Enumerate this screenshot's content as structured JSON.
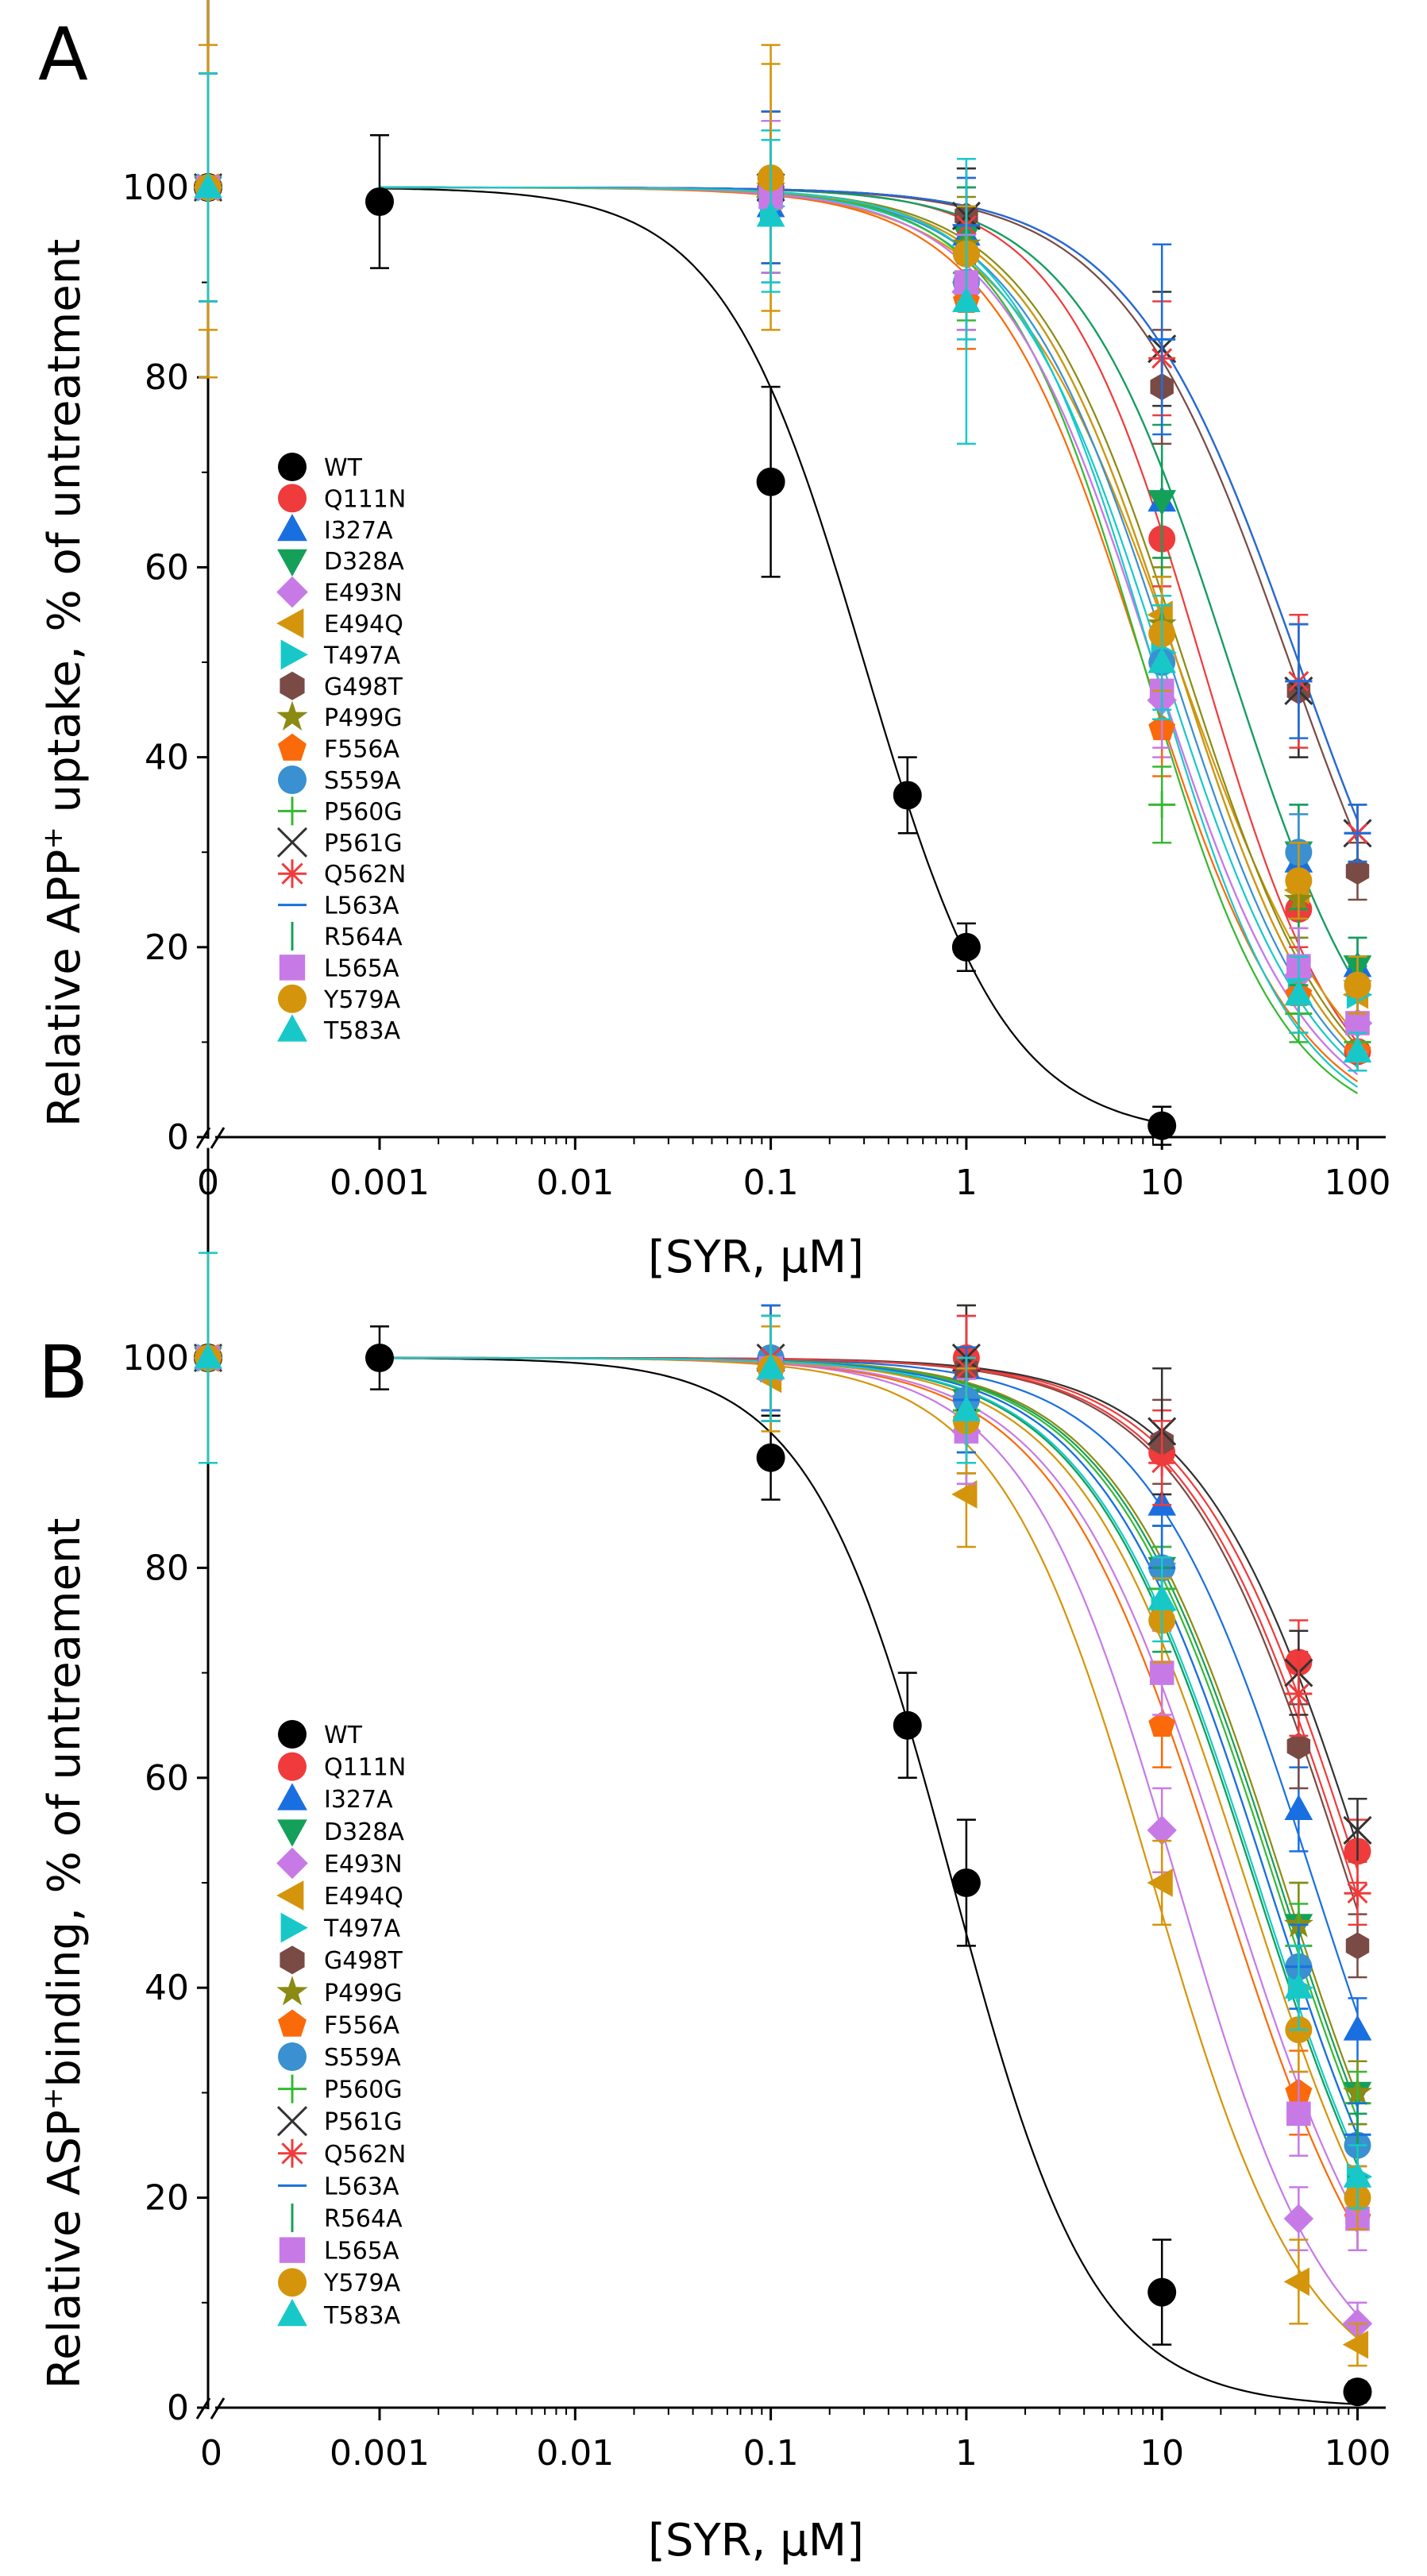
{
  "figure": {
    "panels": [
      {
        "letter": "A",
        "ylabel_pre": "Relative APP",
        "ylabel_sup": "+",
        "ylabel_post": " uptake, % of untreatment"
      },
      {
        "letter": "B",
        "ylabel_pre": "Relative ASP",
        "ylabel_sup": "+",
        "ylabel_post": "binding, % of untreament"
      }
    ]
  },
  "chart_data": [
    {
      "type": "scatter",
      "title": "A",
      "xlabel": "[SYR, μM]",
      "ylabel": "Relative APP+ uptake, % of untreatment",
      "xscale": "log with broken axis at 0",
      "x_tick_labels": [
        "0",
        "0.001",
        "0.01",
        "0.1",
        "1",
        "10",
        "100"
      ],
      "y_tick_labels": [
        "0",
        "20",
        "40",
        "60",
        "80",
        "100"
      ],
      "ylim": [
        0,
        120
      ],
      "x": [
        0,
        0.001,
        0.1,
        1,
        10,
        50,
        100
      ],
      "legend_position": "left",
      "series": [
        {
          "name": "WT",
          "color": "#000000",
          "marker": "circle",
          "values": [
            100,
            98.5,
            69,
            36,
            20,
            1.2,
            null
          ],
          "x": [
            0,
            0.001,
            0.1,
            0.5,
            1,
            10,
            null
          ],
          "errors": [
            0,
            7,
            10,
            4,
            2.5,
            2,
            null
          ],
          "ic50": 0.3,
          "hill": 1.2,
          "fit_end": 10
        },
        {
          "name": "Q111N",
          "color": "#ef3b3b",
          "marker": "circle",
          "values": [
            100,
            null,
            100,
            93,
            63,
            24,
            9
          ],
          "errors": [
            12,
            null,
            8,
            5,
            5,
            4,
            2
          ],
          "ic50": 16,
          "hill": 1.2
        },
        {
          "name": "I327A",
          "color": "#1a6fe0",
          "marker": "triangle-up",
          "values": [
            100,
            null,
            98,
            95,
            67,
            29,
            18
          ],
          "errors": [
            12,
            null,
            8,
            5,
            12,
            6,
            3
          ],
          "ic50": 22,
          "hill": 1.1
        },
        {
          "name": "D328A",
          "color": "#14a058",
          "marker": "triangle-down",
          "values": [
            100,
            null,
            99,
            95,
            67,
            30,
            18
          ],
          "errors": [
            12,
            null,
            8,
            5,
            8,
            5,
            3
          ],
          "ic50": 22,
          "hill": 1.1
        },
        {
          "name": "E493N",
          "color": "#c77ae6",
          "marker": "diamond",
          "values": [
            100,
            null,
            99,
            89,
            46,
            17,
            12
          ],
          "errors": [
            12,
            null,
            8,
            5,
            6,
            4,
            3
          ],
          "ic50": 9,
          "hill": 1.1
        },
        {
          "name": "E494Q",
          "color": "#d4950c",
          "marker": "triangle-left",
          "values": [
            100,
            null,
            99,
            90,
            55,
            26,
            15
          ],
          "errors": [
            20,
            null,
            14,
            5,
            6,
            4,
            3
          ],
          "ic50": 12,
          "hill": 1.0
        },
        {
          "name": "T497A",
          "color": "#18c8c8",
          "marker": "triangle-right",
          "values": [
            100,
            null,
            98,
            89,
            51,
            17,
            15
          ],
          "errors": [
            12,
            null,
            8,
            5,
            6,
            4,
            3
          ],
          "ic50": 10,
          "hill": 1.1
        },
        {
          "name": "G498T",
          "color": "#7a4a45",
          "marker": "hexagon",
          "values": [
            100,
            null,
            100,
            97,
            79,
            47,
            28
          ],
          "errors": [
            12,
            null,
            8,
            5,
            6,
            7,
            3
          ],
          "ic50": 45,
          "hill": 1.0
        },
        {
          "name": "P499G",
          "color": "#8b8b14",
          "marker": "star",
          "values": [
            100,
            null,
            100,
            94,
            54,
            25,
            16
          ],
          "errors": [
            12,
            null,
            8,
            5,
            6,
            4,
            3
          ],
          "ic50": 13,
          "hill": 1.1
        },
        {
          "name": "F556A",
          "color": "#fa6a0a",
          "marker": "pentagon",
          "values": [
            100,
            null,
            99,
            88,
            43,
            15,
            9
          ],
          "errors": [
            12,
            null,
            8,
            5,
            5,
            4,
            2
          ],
          "ic50": 8,
          "hill": 1.1
        },
        {
          "name": "S559A",
          "color": "#3a90d0",
          "marker": "circle",
          "values": [
            100,
            null,
            99,
            90,
            50,
            30,
            16
          ],
          "errors": [
            12,
            null,
            8,
            5,
            6,
            4,
            3
          ],
          "ic50": 11,
          "hill": 1.1
        },
        {
          "name": "P560G",
          "color": "#36b833",
          "marker": "plus",
          "values": [
            100,
            null,
            99,
            91,
            35,
            13,
            10
          ],
          "errors": [
            12,
            null,
            8,
            5,
            4,
            3,
            2
          ],
          "ic50": 8,
          "hill": 1.2
        },
        {
          "name": "P561G",
          "color": "#333333",
          "marker": "x",
          "values": [
            100,
            null,
            100,
            97,
            83,
            47,
            32
          ],
          "errors": [
            12,
            null,
            8,
            5,
            6,
            7,
            3
          ],
          "ic50": 50,
          "hill": 1.0
        },
        {
          "name": "Q562N",
          "color": "#ef3b3b",
          "marker": "asterisk",
          "values": [
            100,
            null,
            100,
            96,
            82,
            48,
            32
          ],
          "errors": [
            12,
            null,
            8,
            5,
            6,
            7,
            3
          ],
          "ic50": 50,
          "hill": 1.0
        },
        {
          "name": "L563A",
          "color": "#1a6fe0",
          "marker": "hline",
          "values": [
            100,
            null,
            100,
            96,
            84,
            48,
            32
          ],
          "errors": [
            12,
            null,
            8,
            5,
            10,
            6,
            3
          ],
          "ic50": 50,
          "hill": 1.0
        },
        {
          "name": "R564A",
          "color": "#14a058",
          "marker": "vline",
          "values": [
            100,
            null,
            99,
            93,
            55,
            20,
            15
          ],
          "errors": [
            12,
            null,
            8,
            5,
            6,
            4,
            3
          ],
          "ic50": 12,
          "hill": 1.1
        },
        {
          "name": "L565A",
          "color": "#c77ae6",
          "marker": "square",
          "values": [
            100,
            null,
            99,
            90,
            47,
            18,
            12
          ],
          "errors": [
            12,
            null,
            8,
            5,
            6,
            4,
            3
          ],
          "ic50": 9,
          "hill": 1.1
        },
        {
          "name": "Y579A",
          "color": "#d4950c",
          "marker": "circle",
          "values": [
            100,
            null,
            101,
            93,
            53,
            27,
            16
          ],
          "errors": [
            15,
            null,
            14,
            5,
            6,
            4,
            3
          ],
          "ic50": 12,
          "hill": 1.1
        },
        {
          "name": "T583A",
          "color": "#18c8c8",
          "marker": "triangle-up",
          "values": [
            100,
            null,
            97,
            88,
            50,
            15,
            9
          ],
          "errors": [
            12,
            null,
            8,
            15,
            6,
            4,
            2
          ],
          "ic50": 9,
          "hill": 1.2
        }
      ]
    },
    {
      "type": "scatter",
      "title": "B",
      "xlabel": "[SYR, μM]",
      "ylabel": "Relative ASP+binding, % of untreament",
      "xscale": "log with broken axis at 0",
      "x_tick_labels": [
        "0",
        "0.001",
        "0.01",
        "0.1",
        "1",
        "10",
        "100"
      ],
      "y_tick_labels": [
        "0",
        "20",
        "40",
        "60",
        "80",
        "100"
      ],
      "ylim": [
        0,
        110
      ],
      "x": [
        0,
        0.001,
        0.1,
        1,
        10,
        50,
        100
      ],
      "legend_position": "left",
      "series": [
        {
          "name": "WT",
          "color": "#000000",
          "marker": "circle",
          "values": [
            100,
            100,
            90.5,
            65,
            50,
            11,
            1.5
          ],
          "x": [
            0,
            0.001,
            0.1,
            0.5,
            1,
            10,
            100
          ],
          "errors": [
            0,
            3,
            4,
            5,
            6,
            5,
            1
          ],
          "ic50": 0.85,
          "hill": 1.2,
          "fit_end": 100
        },
        {
          "name": "Q111N",
          "color": "#ef3b3b",
          "marker": "circle",
          "values": [
            100,
            null,
            100,
            100,
            91,
            71,
            53
          ],
          "errors": [
            10,
            null,
            5,
            5,
            4,
            4,
            3
          ],
          "ic50": 105,
          "hill": 1.0
        },
        {
          "name": "I327A",
          "color": "#1a6fe0",
          "marker": "triangle-up",
          "values": [
            100,
            null,
            99,
            99,
            86,
            57,
            36
          ],
          "errors": [
            10,
            null,
            5,
            5,
            4,
            4,
            3
          ],
          "ic50": 60,
          "hill": 1.0
        },
        {
          "name": "D328A",
          "color": "#14a058",
          "marker": "triangle-down",
          "values": [
            100,
            null,
            99,
            96,
            80,
            46,
            30
          ],
          "errors": [
            10,
            null,
            5,
            5,
            4,
            4,
            3
          ],
          "ic50": 40,
          "hill": 1.0
        },
        {
          "name": "E493N",
          "color": "#c77ae6",
          "marker": "diamond",
          "values": [
            100,
            null,
            99,
            93,
            55,
            18,
            8
          ],
          "errors": [
            10,
            null,
            5,
            5,
            4,
            3,
            2
          ],
          "ic50": 12,
          "hill": 1.1
        },
        {
          "name": "E494Q",
          "color": "#d4950c",
          "marker": "triangle-left",
          "values": [
            100,
            null,
            98,
            87,
            50,
            12,
            6
          ],
          "errors": [
            10,
            null,
            5,
            5,
            4,
            4,
            2
          ],
          "ic50": 9,
          "hill": 1.1
        },
        {
          "name": "T497A",
          "color": "#18c8c8",
          "marker": "triangle-right",
          "values": [
            100,
            null,
            99,
            95,
            76,
            40,
            22
          ],
          "errors": [
            10,
            null,
            5,
            5,
            4,
            4,
            3
          ],
          "ic50": 30,
          "hill": 1.0
        },
        {
          "name": "G498T",
          "color": "#7a4a45",
          "marker": "hexagon",
          "values": [
            100,
            null,
            100,
            99,
            92,
            63,
            44
          ],
          "errors": [
            10,
            null,
            5,
            5,
            4,
            4,
            3
          ],
          "ic50": 90,
          "hill": 1.0
        },
        {
          "name": "P499G",
          "color": "#8b8b14",
          "marker": "star",
          "values": [
            100,
            null,
            99,
            96,
            80,
            46,
            30
          ],
          "errors": [
            10,
            null,
            5,
            5,
            4,
            4,
            3
          ],
          "ic50": 42,
          "hill": 1.0
        },
        {
          "name": "F556A",
          "color": "#fa6a0a",
          "marker": "pentagon",
          "values": [
            100,
            null,
            99,
            94,
            65,
            30,
            18
          ],
          "errors": [
            10,
            null,
            5,
            5,
            4,
            4,
            3
          ],
          "ic50": 20,
          "hill": 1.0
        },
        {
          "name": "S559A",
          "color": "#3a90d0",
          "marker": "circle",
          "values": [
            100,
            null,
            100,
            96,
            80,
            42,
            25
          ],
          "errors": [
            10,
            null,
            5,
            5,
            4,
            4,
            3
          ],
          "ic50": 35,
          "hill": 1.0
        },
        {
          "name": "P560G",
          "color": "#36b833",
          "marker": "plus",
          "values": [
            100,
            null,
            99,
            95,
            78,
            44,
            29
          ],
          "errors": [
            10,
            null,
            5,
            5,
            4,
            4,
            3
          ],
          "ic50": 38,
          "hill": 1.0
        },
        {
          "name": "P561G",
          "color": "#333333",
          "marker": "x",
          "values": [
            100,
            null,
            100,
            100,
            93,
            70,
            55
          ],
          "errors": [
            10,
            null,
            5,
            5,
            6,
            4,
            3
          ],
          "ic50": 115,
          "hill": 1.0
        },
        {
          "name": "Q562N",
          "color": "#ef3b3b",
          "marker": "asterisk",
          "values": [
            100,
            null,
            100,
            99,
            90,
            68,
            49
          ],
          "errors": [
            10,
            null,
            5,
            5,
            4,
            4,
            3
          ],
          "ic50": 95,
          "hill": 1.0
        },
        {
          "name": "L563A",
          "color": "#1a6fe0",
          "marker": "hline",
          "values": [
            100,
            null,
            100,
            96,
            80,
            42,
            26
          ],
          "errors": [
            10,
            null,
            5,
            5,
            4,
            4,
            3
          ],
          "ic50": 35,
          "hill": 1.0
        },
        {
          "name": "R564A",
          "color": "#14a058",
          "marker": "vline",
          "values": [
            100,
            null,
            99,
            94,
            76,
            40,
            25
          ],
          "errors": [
            10,
            null,
            5,
            5,
            4,
            4,
            3
          ],
          "ic50": 30,
          "hill": 1.0
        },
        {
          "name": "L565A",
          "color": "#c77ae6",
          "marker": "square",
          "values": [
            100,
            null,
            99,
            93,
            70,
            28,
            18
          ],
          "errors": [
            10,
            null,
            5,
            5,
            4,
            4,
            3
          ],
          "ic50": 22,
          "hill": 1.0
        },
        {
          "name": "Y579A",
          "color": "#d4950c",
          "marker": "circle",
          "values": [
            100,
            null,
            99,
            94,
            75,
            36,
            20
          ],
          "errors": [
            10,
            null,
            5,
            5,
            4,
            4,
            3
          ],
          "ic50": 27,
          "hill": 1.0
        },
        {
          "name": "T583A",
          "color": "#18c8c8",
          "marker": "triangle-up",
          "values": [
            100,
            null,
            99,
            95,
            77,
            40,
            22
          ],
          "errors": [
            10,
            null,
            5,
            5,
            4,
            4,
            3
          ],
          "ic50": 31,
          "hill": 1.0
        }
      ]
    }
  ]
}
